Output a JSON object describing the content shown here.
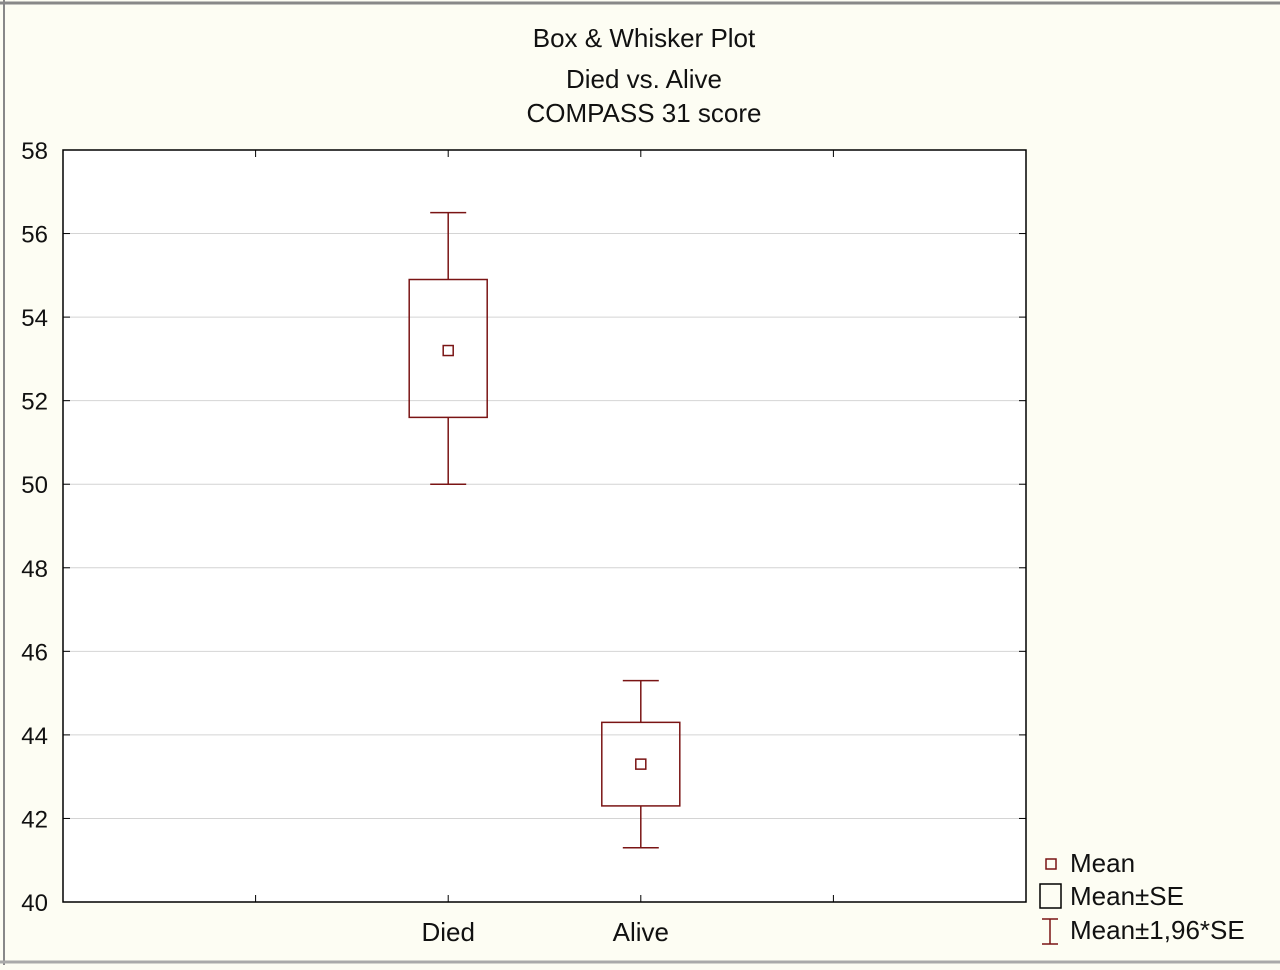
{
  "chart_data": {
    "type": "box",
    "title_lines": [
      "Box & Whisker Plot",
      "Died vs. Alive",
      "COMPASS 31 score"
    ],
    "categories": [
      "Died",
      "Alive"
    ],
    "groups": [
      {
        "name": "Died",
        "mean": 53.2,
        "se_low": 51.6,
        "se_high": 54.9,
        "ci_low": 50.0,
        "ci_high": 56.5
      },
      {
        "name": "Alive",
        "mean": 43.3,
        "se_low": 42.3,
        "se_high": 44.3,
        "ci_low": 41.3,
        "ci_high": 45.3
      }
    ],
    "ylim": [
      40,
      58
    ],
    "yticks": [
      40,
      42,
      44,
      46,
      48,
      50,
      52,
      54,
      56,
      58
    ],
    "grid": true,
    "legend": {
      "position": "bottom-right",
      "entries": [
        "Mean",
        "Mean±SE",
        "Mean±1,96*SE"
      ]
    },
    "colors": {
      "series": "#7a1414",
      "grid": "#d4d4d4",
      "background": "#fdfdf3",
      "plot_background": "#ffffff",
      "frame": "#000000"
    }
  }
}
